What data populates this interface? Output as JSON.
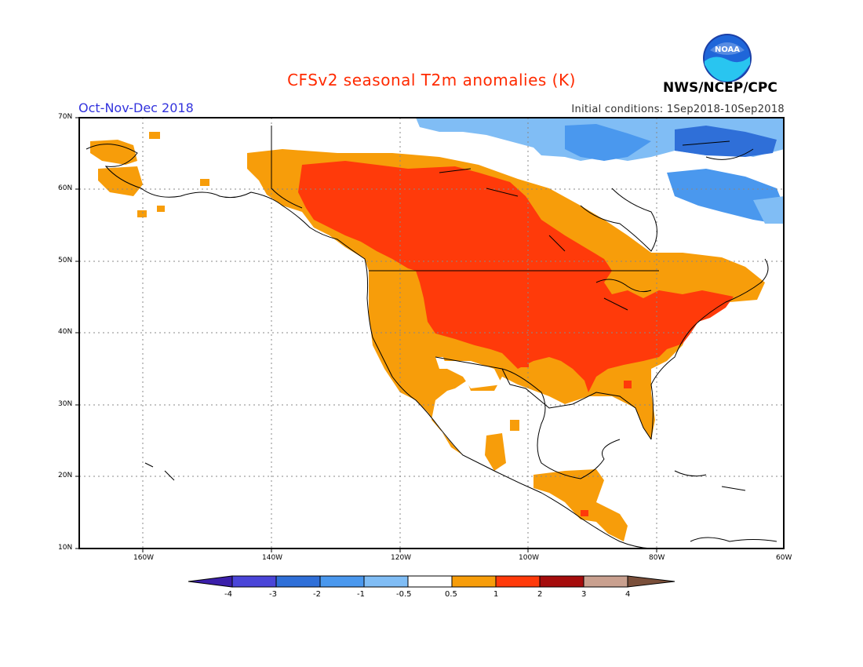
{
  "title": "CFSv2 seasonal T2m anomalies (K)",
  "period": "Oct-Nov-Dec 2018",
  "initial_conditions": "Initial conditions: 1Sep2018-10Sep2018",
  "agency": "NWS/NCEP/CPC",
  "logo_text": "NOAA",
  "map": {
    "lon_labels": [
      "160W",
      "140W",
      "120W",
      "100W",
      "80W",
      "60W"
    ],
    "lat_labels": [
      "70N",
      "60N",
      "50N",
      "40N",
      "30N",
      "20N",
      "10N"
    ],
    "region": "North America",
    "grid": true
  },
  "legend": {
    "colors": [
      "#3b1faa",
      "#4a45d8",
      "#2f6fd8",
      "#4a98ee",
      "#80bdf5",
      "#ffffff",
      "#f79d0a",
      "#ff3a0a",
      "#a50c0c",
      "#c9a08f",
      "#7a4f3a"
    ],
    "labels": [
      "-4",
      "-3",
      "-2",
      "-1",
      "-0.5",
      "0.5",
      "1",
      "2",
      "3",
      "4"
    ]
  }
}
